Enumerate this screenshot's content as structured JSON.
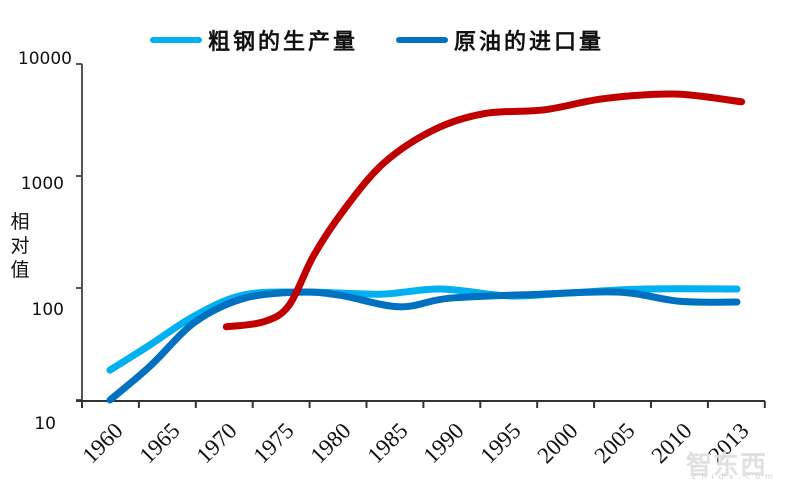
{
  "legend": {
    "items": [
      {
        "label": "粗钢的生产量",
        "color": "#00B0F0"
      },
      {
        "label": "原油的进口量",
        "color": "#0070C0"
      }
    ]
  },
  "axes": {
    "ylabel": "相对值",
    "yticks": [
      "10000",
      "1000",
      "100",
      "10"
    ],
    "xticks": [
      "1960",
      "1965",
      "1970",
      "1975",
      "1980",
      "1985",
      "1990",
      "1995",
      "2000",
      "2005",
      "2010",
      "2013"
    ]
  },
  "watermark": {
    "text": "智东西",
    "sub": "zhidx.com"
  },
  "chart_data": {
    "type": "line",
    "title": "",
    "xlabel": "",
    "ylabel": "相对值",
    "yscale": "log",
    "ylim": [
      10,
      10000
    ],
    "xlim": [
      1957.5,
      2017.5
    ],
    "grid": false,
    "legend_position": "top",
    "x_tick_labels": [
      "1960",
      "1965",
      "1970",
      "1975",
      "1980",
      "1985",
      "1990",
      "1995",
      "2000",
      "2005",
      "2010",
      "2013"
    ],
    "series": [
      {
        "name": "粗钢的生产量",
        "color": "#00B0F0",
        "x": [
          1960,
          1963.5,
          1967.5,
          1971.8,
          1977.5,
          1983.7,
          1989,
          1995,
          2000,
          2007,
          2015
        ],
        "values": [
          18.5,
          31,
          57,
          87,
          92,
          88,
          98,
          85,
          90,
          98,
          98
        ]
      },
      {
        "name": "原油的进口量",
        "color": "#0070C0",
        "x": [
          1960,
          1963.5,
          1967.5,
          1971.8,
          1976.7,
          1980.2,
          1985.4,
          1989.8,
          1997.7,
          2004.7,
          2010,
          2015
        ],
        "values": [
          10,
          20,
          50,
          81,
          92,
          86,
          68,
          81,
          88,
          92,
          76,
          75
        ]
      },
      {
        "name": "(unlabeled red series)",
        "color": "#C00000",
        "x": [
          1970.2,
          1973.5,
          1975.7,
          1977.9,
          1980.5,
          1984,
          1988.4,
          1992.8,
          1998.1,
          2003.3,
          2009.5,
          2015.4
        ],
        "values": [
          45,
          50,
          70,
          198,
          495,
          1300,
          2580,
          3600,
          3900,
          4900,
          5400,
          4600
        ]
      }
    ]
  }
}
